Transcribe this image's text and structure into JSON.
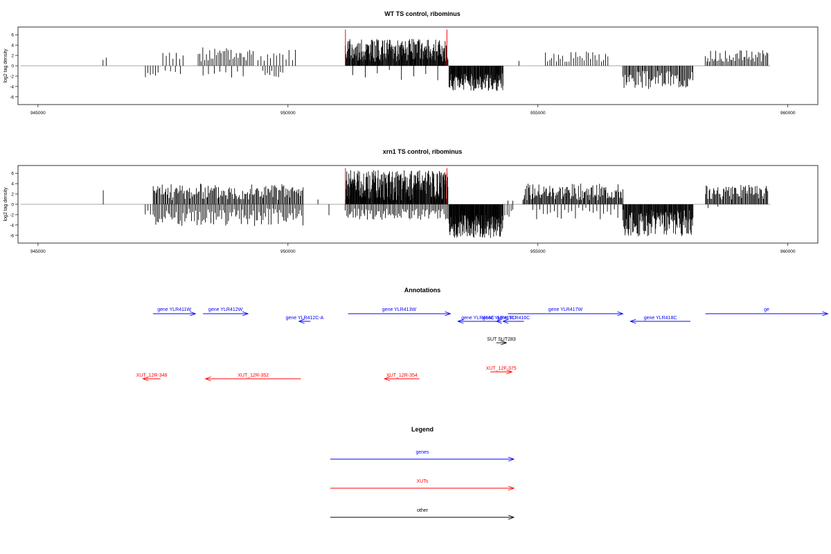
{
  "colors": {
    "gene": "#0000ff",
    "xut": "#ff0000",
    "other": "#000000",
    "boundary": "#ff0000",
    "bars": "#000000",
    "baseline": "#888888"
  },
  "chart_data": [
    {
      "type": "bar",
      "title": "WT TS control, ribominus",
      "ylabel": "log2 tag density",
      "xlim": [
        944600,
        960600
      ],
      "ylim": [
        -7.5,
        7.5
      ],
      "xticks": [
        945000,
        950000,
        955000,
        960000
      ],
      "xtick_labels": [
        "945000",
        "950000",
        "955000",
        "960000"
      ],
      "yticks": [
        -6,
        -4,
        -2,
        0,
        2,
        4,
        6
      ],
      "ytick_labels": [
        "-6",
        "-4",
        "-2",
        "0",
        "2",
        "4",
        "6"
      ],
      "baseline_x": [
        944650,
        959650
      ],
      "boundaries": [
        951150,
        953180
      ],
      "segments": [
        {
          "x0": 946300,
          "x1": 946360,
          "lo": 0.8,
          "hi": 1.8,
          "n": 2,
          "seed": 1
        },
        {
          "x0": 947150,
          "x1": 947400,
          "lo": -2.4,
          "hi": -1.0,
          "n": 6,
          "seed": 2
        },
        {
          "x0": 947500,
          "x1": 947900,
          "lo": 0.6,
          "hi": 2.6,
          "n": 7,
          "seed": 3
        },
        {
          "x0": 947550,
          "x1": 947850,
          "lo": -1.8,
          "hi": -0.6,
          "n": 4,
          "seed": 4
        },
        {
          "x0": 948200,
          "x1": 949300,
          "lo": 0.8,
          "hi": 3.6,
          "n": 34,
          "seed": 5
        },
        {
          "x0": 948300,
          "x1": 949100,
          "lo": -2.4,
          "hi": -0.8,
          "n": 8,
          "seed": 6
        },
        {
          "x0": 949400,
          "x1": 950150,
          "lo": 0.8,
          "hi": 3.2,
          "n": 13,
          "seed": 7
        },
        {
          "x0": 949500,
          "x1": 949900,
          "lo": -2.4,
          "hi": -0.8,
          "n": 10,
          "seed": 8
        },
        {
          "x0": 951150,
          "x1": 953200,
          "lo": 0.8,
          "hi": 5.2,
          "n": 230,
          "seed": 9
        },
        {
          "x0": 951300,
          "x1": 953000,
          "lo": -2.8,
          "hi": -0.8,
          "n": 8,
          "seed": 10
        },
        {
          "x0": 953220,
          "x1": 954300,
          "lo": -4.9,
          "hi": -1.5,
          "n": 130,
          "seed": 11
        },
        {
          "x0": 954600,
          "x1": 954640,
          "lo": 0.8,
          "hi": 1.0,
          "n": 1,
          "seed": 12
        },
        {
          "x0": 955150,
          "x1": 956400,
          "lo": 0.6,
          "hi": 2.8,
          "n": 30,
          "seed": 13
        },
        {
          "x0": 956700,
          "x1": 958100,
          "lo": -4.5,
          "hi": -1.0,
          "n": 70,
          "seed": 14
        },
        {
          "x0": 958350,
          "x1": 959600,
          "lo": 0.8,
          "hi": 3.0,
          "n": 48,
          "seed": 15
        }
      ]
    },
    {
      "type": "bar",
      "title": "xrn1 TS control, ribominus",
      "ylabel": "log2 tag density",
      "xlim": [
        944600,
        960600
      ],
      "ylim": [
        -7.5,
        7.5
      ],
      "xticks": [
        945000,
        950000,
        955000,
        960000
      ],
      "xtick_labels": [
        "945000",
        "950000",
        "955000",
        "960000"
      ],
      "yticks": [
        -6,
        -4,
        -2,
        0,
        2,
        4,
        6
      ],
      "ytick_labels": [
        "-6",
        "-4",
        "-2",
        "0",
        "2",
        "4",
        "6"
      ],
      "baseline_x": [
        944650,
        959650
      ],
      "boundaries": [
        951150,
        953180
      ],
      "segments": [
        {
          "x0": 946290,
          "x1": 946320,
          "lo": 2.6,
          "hi": 3.0,
          "n": 1,
          "seed": 21
        },
        {
          "x0": 947150,
          "x1": 947300,
          "lo": -2.0,
          "hi": -0.8,
          "n": 4,
          "seed": 22
        },
        {
          "x0": 947300,
          "x1": 950300,
          "lo": 0.8,
          "hi": 4.0,
          "n": 150,
          "seed": 23
        },
        {
          "x0": 947300,
          "x1": 950300,
          "lo": -4.2,
          "hi": -0.8,
          "n": 110,
          "seed": 24
        },
        {
          "x0": 950580,
          "x1": 950620,
          "lo": 0.8,
          "hi": 1.0,
          "n": 1,
          "seed": 25
        },
        {
          "x0": 950800,
          "x1": 950840,
          "lo": -3.0,
          "hi": -1.0,
          "n": 1,
          "seed": 26
        },
        {
          "x0": 951150,
          "x1": 953200,
          "lo": 0.8,
          "hi": 6.6,
          "n": 260,
          "seed": 27
        },
        {
          "x0": 951150,
          "x1": 953200,
          "lo": -3.0,
          "hi": -0.8,
          "n": 80,
          "seed": 28
        },
        {
          "x0": 953220,
          "x1": 954300,
          "lo": -6.5,
          "hi": -2.0,
          "n": 170,
          "seed": 29
        },
        {
          "x0": 954300,
          "x1": 954500,
          "lo": -2.5,
          "hi": -0.8,
          "n": 6,
          "seed": 30
        },
        {
          "x0": 954400,
          "x1": 954500,
          "lo": 0.6,
          "hi": 1.2,
          "n": 2,
          "seed": 31
        },
        {
          "x0": 954700,
          "x1": 956700,
          "lo": 0.8,
          "hi": 4.0,
          "n": 120,
          "seed": 32
        },
        {
          "x0": 954900,
          "x1": 956600,
          "lo": -3.0,
          "hi": -0.6,
          "n": 25,
          "seed": 33
        },
        {
          "x0": 956700,
          "x1": 958100,
          "lo": -6.2,
          "hi": -1.0,
          "n": 140,
          "seed": 34
        },
        {
          "x0": 958350,
          "x1": 959600,
          "lo": 0.8,
          "hi": 3.8,
          "n": 70,
          "seed": 35
        },
        {
          "x0": 958400,
          "x1": 958600,
          "lo": -0.8,
          "hi": -0.4,
          "n": 2,
          "seed": 36
        }
      ]
    }
  ],
  "annotations": {
    "title": "Annotations",
    "features": [
      {
        "label": "gene YLR411W",
        "kind": "gene",
        "start": 947300,
        "end": 948150,
        "strand": "+",
        "row": 0
      },
      {
        "label": "gene YLR412W",
        "kind": "gene",
        "start": 948300,
        "end": 949200,
        "strand": "+",
        "row": 0
      },
      {
        "label": "gene YLR412C-A",
        "kind": "gene",
        "start": 950220,
        "end": 950450,
        "strand": "-",
        "row": 1
      },
      {
        "label": "gene YLR413W",
        "kind": "gene",
        "start": 951200,
        "end": 953250,
        "strand": "+",
        "row": 0
      },
      {
        "label": "gene YLR414C",
        "kind": "gene",
        "start": 953400,
        "end": 954200,
        "strand": "-",
        "row": 1
      },
      {
        "label": "gene YLR415C",
        "kind": "gene",
        "start": 954170,
        "end": 954270,
        "strand": "-",
        "row": 1
      },
      {
        "label": "gene YLR416C",
        "kind": "gene",
        "start": 954300,
        "end": 954720,
        "strand": "-",
        "row": 1
      },
      {
        "label": "gene YLR417W",
        "kind": "gene",
        "start": 954400,
        "end": 956700,
        "strand": "+",
        "row": 0
      },
      {
        "label": "gene YLR418C",
        "kind": "gene",
        "start": 956850,
        "end": 958050,
        "strand": "-",
        "row": 1
      },
      {
        "label": "ge",
        "kind": "gene",
        "start": 958350,
        "end": 960800,
        "strand": "+",
        "row": 0
      },
      {
        "label": "SUT SUT283",
        "kind": "other",
        "start": 954170,
        "end": 954370,
        "strand": "+",
        "row": 2
      },
      {
        "label": "XUT_12R-348",
        "kind": "xut",
        "start": 947100,
        "end": 947450,
        "strand": "-",
        "row": 4
      },
      {
        "label": "XUT_12R-352",
        "kind": "xut",
        "start": 948350,
        "end": 950260,
        "strand": "-",
        "row": 4
      },
      {
        "label": "XUT_12R-354",
        "kind": "xut",
        "start": 951930,
        "end": 952630,
        "strand": "-",
        "row": 4
      },
      {
        "label": "XUT_12F-375",
        "kind": "xut",
        "start": 954050,
        "end": 954480,
        "strand": "+",
        "row": 3
      }
    ]
  },
  "legend": {
    "title": "Legend",
    "items": [
      {
        "label": "genes",
        "kind": "gene"
      },
      {
        "label": "XUTs",
        "kind": "xut"
      },
      {
        "label": "other",
        "kind": "other"
      }
    ]
  }
}
